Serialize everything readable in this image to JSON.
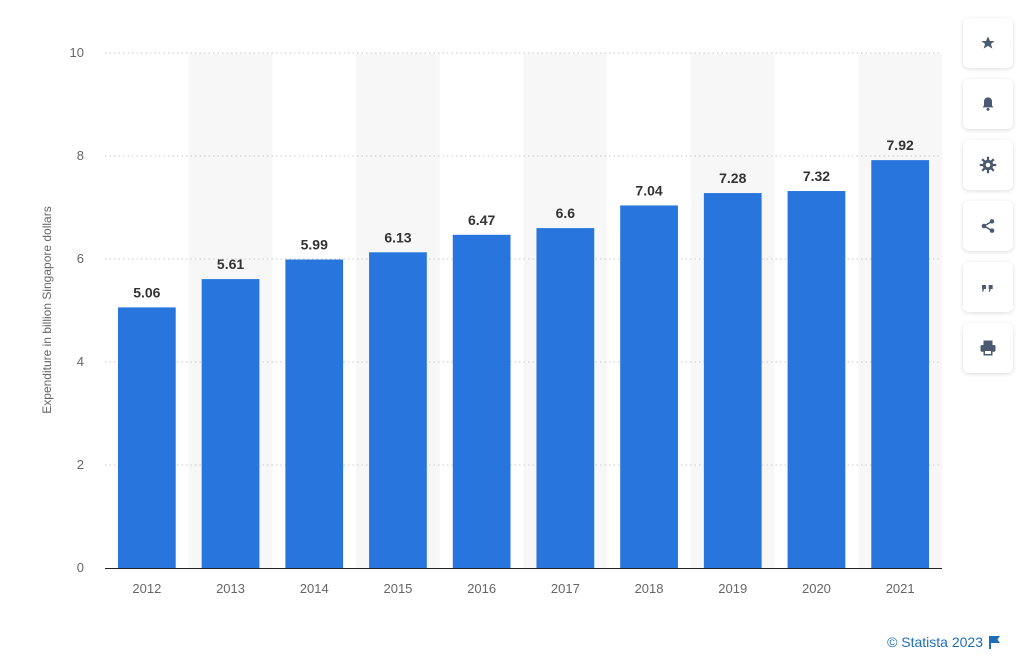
{
  "chart_data": {
    "type": "bar",
    "categories": [
      "2012",
      "2013",
      "2014",
      "2015",
      "2016",
      "2017",
      "2018",
      "2019",
      "2020",
      "2021"
    ],
    "values": [
      5.06,
      5.61,
      5.99,
      6.13,
      6.47,
      6.6,
      7.04,
      7.28,
      7.32,
      7.92
    ],
    "value_labels": [
      "5.06",
      "5.61",
      "5.99",
      "6.13",
      "6.47",
      "6.6",
      "7.04",
      "7.28",
      "7.32",
      "7.92"
    ],
    "ylabel": "Expenditure in billion Singapore dollars",
    "ylim": [
      0,
      10
    ],
    "yticks": [
      0,
      2,
      4,
      6,
      8,
      10
    ],
    "grid": true,
    "bar_color": "#2876dd"
  },
  "toolbar": {
    "items": [
      {
        "icon": "star-icon"
      },
      {
        "icon": "bell-icon"
      },
      {
        "icon": "gear-icon"
      },
      {
        "icon": "share-icon"
      },
      {
        "icon": "quote-icon"
      },
      {
        "icon": "print-icon"
      }
    ]
  },
  "footer": {
    "credit": "© Statista 2023"
  }
}
